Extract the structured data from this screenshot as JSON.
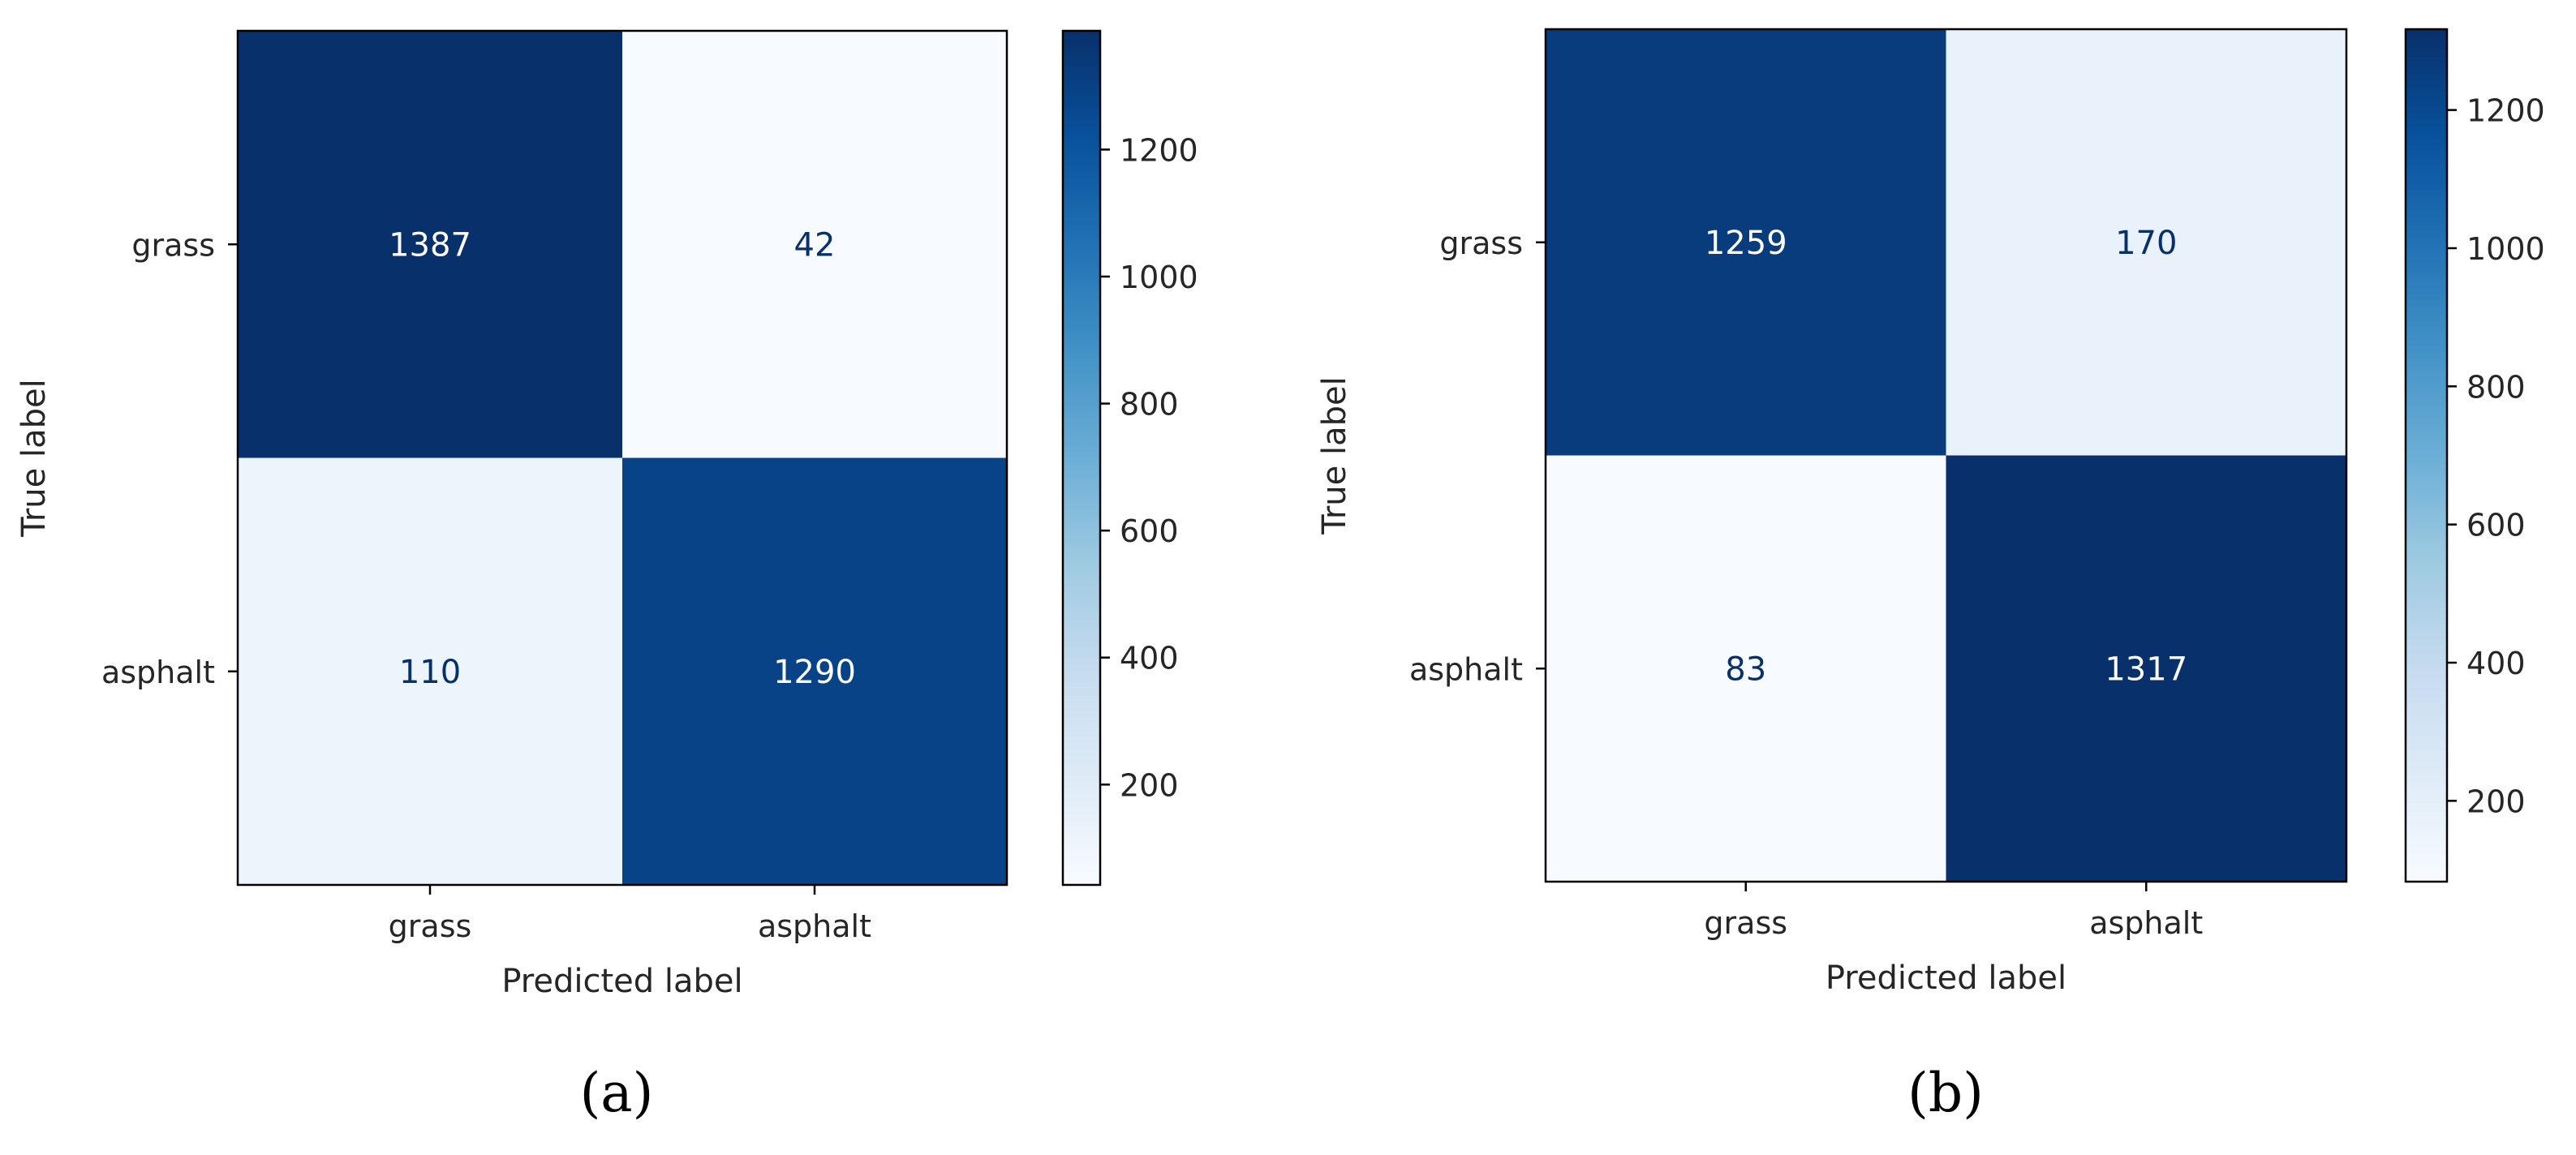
{
  "chart_data": [
    {
      "type": "heatmap",
      "caption": "(a)",
      "xlabel": "Predicted label",
      "ylabel": "True label",
      "x_categories": [
        "grass",
        "asphalt"
      ],
      "y_categories": [
        "grass",
        "asphalt"
      ],
      "values": [
        [
          1387,
          42
        ],
        [
          110,
          1290
        ]
      ],
      "colormap": "Blues",
      "colorbar_range": [
        42,
        1387
      ],
      "colorbar_ticks": [
        200,
        400,
        600,
        800,
        1000,
        1200
      ]
    },
    {
      "type": "heatmap",
      "caption": "(b)",
      "xlabel": "Predicted label",
      "ylabel": "True label",
      "x_categories": [
        "grass",
        "asphalt"
      ],
      "y_categories": [
        "grass",
        "asphalt"
      ],
      "values": [
        [
          1259,
          170
        ],
        [
          83,
          1317
        ]
      ],
      "colormap": "Blues",
      "colorbar_range": [
        83,
        1317
      ],
      "colorbar_ticks": [
        200,
        400,
        600,
        800,
        1000,
        1200
      ]
    }
  ]
}
